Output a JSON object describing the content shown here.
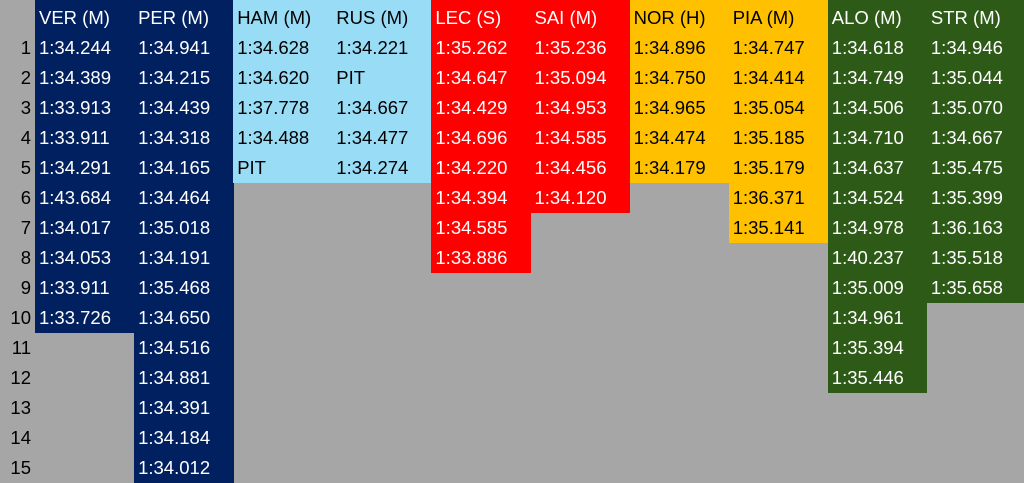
{
  "colors": {
    "background": "#a6a6a6",
    "red_bull": "#002060",
    "mercedes": "#99dcf6",
    "ferrari": "#ff0000",
    "mclaren": "#ffc000",
    "aston_martin": "#2e5a17"
  },
  "row_numbers": [
    "1",
    "2",
    "3",
    "4",
    "5",
    "6",
    "7",
    "8",
    "9",
    "10",
    "11",
    "12",
    "13",
    "14",
    "15"
  ],
  "columns": [
    {
      "header": "VER (M)",
      "team": "red_bull",
      "text_color": "#ffffff",
      "values": [
        "1:34.244",
        "1:34.389",
        "1:33.913",
        "1:33.911",
        "1:34.291",
        "1:43.684",
        "1:34.017",
        "1:34.053",
        "1:33.911",
        "1:33.726"
      ]
    },
    {
      "header": "PER (M)",
      "team": "red_bull",
      "text_color": "#ffffff",
      "values": [
        "1:34.941",
        "1:34.215",
        "1:34.439",
        "1:34.318",
        "1:34.165",
        "1:34.464",
        "1:35.018",
        "1:34.191",
        "1:35.468",
        "1:34.650",
        "1:34.516",
        "1:34.881",
        "1:34.391",
        "1:34.184",
        "1:34.012"
      ]
    },
    {
      "header": "HAM (M)",
      "team": "mercedes",
      "text_color": "#000000",
      "values": [
        "1:34.628",
        "1:34.620",
        "1:37.778",
        "1:34.488",
        "PIT"
      ]
    },
    {
      "header": "RUS (M)",
      "team": "mercedes",
      "text_color": "#000000",
      "values": [
        "1:34.221",
        "PIT",
        "1:34.667",
        "1:34.477",
        "1:34.274"
      ]
    },
    {
      "header": "LEC (S)",
      "team": "ferrari",
      "text_color": "#ffffff",
      "values": [
        "1:35.262",
        "1:34.647",
        "1:34.429",
        "1:34.696",
        "1:34.220",
        "1:34.394",
        "1:34.585",
        "1:33.886"
      ]
    },
    {
      "header": "SAI (M)",
      "team": "ferrari",
      "text_color": "#ffffff",
      "values": [
        "1:35.236",
        "1:35.094",
        "1:34.953",
        "1:34.585",
        "1:34.456",
        "1:34.120"
      ]
    },
    {
      "header": "NOR (H)",
      "team": "mclaren",
      "text_color": "#000000",
      "values": [
        "1:34.896",
        "1:34.750",
        "1:34.965",
        "1:34.474",
        "1:34.179"
      ]
    },
    {
      "header": "PIA (M)",
      "team": "mclaren",
      "text_color": "#000000",
      "values": [
        "1:34.747",
        "1:34.414",
        "1:35.054",
        "1:35.185",
        "1:35.179",
        "1:36.371",
        "1:35.141"
      ]
    },
    {
      "header": "ALO (M)",
      "team": "aston_martin",
      "text_color": "#ffffff",
      "values": [
        "1:34.618",
        "1:34.749",
        "1:34.506",
        "1:34.710",
        "1:34.637",
        "1:34.524",
        "1:34.978",
        "1:40.237",
        "1:35.009",
        "1:34.961",
        "1:35.394",
        "1:35.446"
      ]
    },
    {
      "header": "STR (M)",
      "team": "aston_martin",
      "text_color": "#ffffff",
      "values": [
        "1:34.946",
        "1:35.044",
        "1:35.070",
        "1:34.667",
        "1:35.475",
        "1:35.399",
        "1:36.163",
        "1:35.518",
        "1:35.658"
      ]
    }
  ]
}
